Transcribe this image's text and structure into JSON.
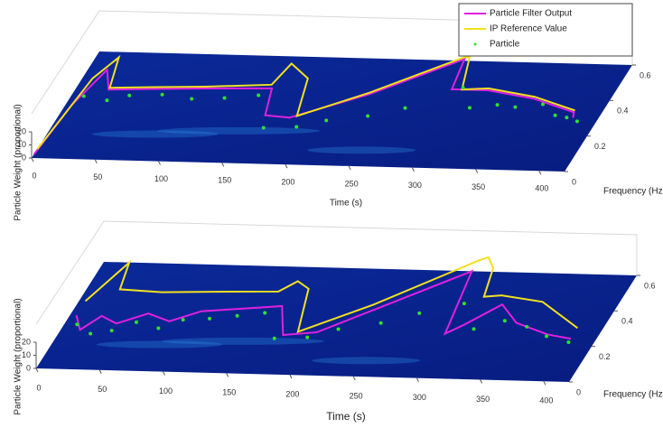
{
  "chart_data": [
    {
      "type": "surface3d",
      "xlabel": "Time (s)",
      "ylabel": "Frequency (Hz)",
      "zlabel": "Particle Weight (proportional)",
      "xlim": [
        0,
        420
      ],
      "ylim": [
        0,
        0.6
      ],
      "zlim": [
        0,
        20
      ],
      "xticks": [
        0,
        50,
        100,
        150,
        200,
        250,
        300,
        350,
        400
      ],
      "yticks": [
        0,
        0.2,
        0.4,
        0.6
      ],
      "zticks": [
        0,
        10,
        20
      ],
      "legend": "upper right",
      "series": [
        {
          "name": "Particle Filter Output",
          "color": "#e020e0",
          "kind": "line",
          "x": [
            0,
            5,
            15,
            26,
            60,
            100,
            152,
            160,
            180,
            230,
            287,
            292,
            320,
            360,
            398,
            400
          ],
          "values": [
            0.02,
            0.3,
            0.5,
            0.39,
            0.4,
            0.41,
            0.42,
            0.27,
            0.26,
            0.4,
            0.61,
            0.44,
            0.44,
            0.4,
            0.33,
            0.3
          ]
        },
        {
          "name": "IP Reference Value",
          "color": "#f0e020",
          "kind": "line",
          "x": [
            0,
            8,
            18,
            26,
            60,
            100,
            150,
            155,
            175,
            185,
            230,
            286,
            290,
            300,
            320,
            360,
            398
          ],
          "values": [
            0.05,
            0.45,
            0.57,
            0.4,
            0.41,
            0.42,
            0.44,
            0.56,
            0.48,
            0.27,
            0.41,
            0.62,
            0.62,
            0.44,
            0.45,
            0.41,
            0.34
          ]
        },
        {
          "name": "Particle",
          "color": "#30e030",
          "kind": "scatter",
          "x": [
            10,
            30,
            45,
            70,
            95,
            120,
            145,
            165,
            190,
            210,
            240,
            265,
            300,
            315,
            335,
            350,
            370,
            385,
            395,
            405
          ],
          "values": [
            0.35,
            0.33,
            0.36,
            0.37,
            0.35,
            0.36,
            0.38,
            0.2,
            0.21,
            0.25,
            0.28,
            0.33,
            0.45,
            0.34,
            0.36,
            0.35,
            0.37,
            0.31,
            0.3,
            0.28
          ]
        }
      ]
    },
    {
      "type": "surface3d",
      "xlabel": "Time (s)",
      "ylabel": "Frequency (Hz)",
      "zlabel": "Particle Weight (proportional)",
      "xlim": [
        0,
        420
      ],
      "ylim": [
        0,
        0.6
      ],
      "zlim": [
        0,
        20
      ],
      "xticks": [
        0,
        50,
        100,
        150,
        200,
        250,
        300,
        350,
        400
      ],
      "yticks": [
        0,
        0.2,
        0.4,
        0.6
      ],
      "zticks": [
        0,
        10,
        20
      ],
      "series": [
        {
          "color": "#e020e0",
          "kind": "line",
          "x": [
            5,
            15,
            25,
            40,
            60,
            80,
            100,
            130,
            160,
            175,
            200,
            240,
            290,
            300,
            310,
            330,
            350,
            380,
            400
          ],
          "values": [
            0.3,
            0.22,
            0.3,
            0.26,
            0.32,
            0.28,
            0.34,
            0.36,
            0.38,
            0.22,
            0.24,
            0.4,
            0.6,
            0.25,
            0.3,
            0.42,
            0.32,
            0.26,
            0.24
          ]
        },
        {
          "color": "#f0e020",
          "kind": "line",
          "x": [
            5,
            20,
            26,
            60,
            100,
            150,
            160,
            172,
            185,
            230,
            290,
            296,
            305,
            312,
            325,
            360,
            400
          ],
          "values": [
            0.38,
            0.6,
            0.45,
            0.44,
            0.45,
            0.46,
            0.52,
            0.48,
            0.24,
            0.4,
            0.66,
            0.68,
            0.62,
            0.46,
            0.47,
            0.44,
            0.3
          ]
        },
        {
          "color": "#30e030",
          "kind": "scatter",
          "x": [
            10,
            25,
            40,
            55,
            75,
            90,
            110,
            130,
            150,
            170,
            195,
            215,
            245,
            270,
            300,
            320,
            340,
            360,
            380,
            400
          ],
          "values": [
            0.25,
            0.2,
            0.22,
            0.27,
            0.24,
            0.29,
            0.3,
            0.32,
            0.34,
            0.2,
            0.21,
            0.26,
            0.3,
            0.36,
            0.42,
            0.28,
            0.33,
            0.3,
            0.25,
            0.22
          ]
        }
      ]
    }
  ]
}
